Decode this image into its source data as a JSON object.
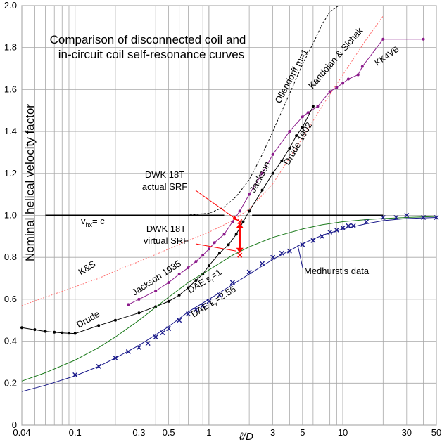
{
  "chart_data": {
    "type": "line",
    "title": "Comparison of disconnected coil and",
    "subtitle": "in-circuit coil self-resonance curves",
    "ylabel": "Nominal helical velocity factor",
    "xlabel": "ℓ/D",
    "x_scale": "log",
    "xlim": [
      0.04,
      50
    ],
    "ylim": [
      0,
      2.0
    ],
    "grid": true,
    "x_ticks": [
      {
        "v": 0.04,
        "label": "0.04"
      },
      {
        "v": 0.1,
        "label": "0.1"
      },
      {
        "v": 0.3,
        "label": "0.3"
      },
      {
        "v": 0.5,
        "label": "0.5"
      },
      {
        "v": 1,
        "label": "1"
      },
      {
        "v": 3,
        "label": "3"
      },
      {
        "v": 5,
        "label": "5"
      },
      {
        "v": 10,
        "label": "10"
      },
      {
        "v": 30,
        "label": "30"
      },
      {
        "v": 50,
        "label": "50"
      }
    ],
    "y_ticks": [
      {
        "v": 0,
        "label": "0"
      },
      {
        "v": 0.2,
        "label": "0.2"
      },
      {
        "v": 0.4,
        "label": "0.4"
      },
      {
        "v": 0.6,
        "label": "0.6"
      },
      {
        "v": 0.8,
        "label": "0.8"
      },
      {
        "v": 1.0,
        "label": "1.0"
      },
      {
        "v": 1.2,
        "label": "1.2"
      },
      {
        "v": 1.4,
        "label": "1.4"
      },
      {
        "v": 1.6,
        "label": "1.6"
      },
      {
        "v": 1.8,
        "label": "1.8"
      },
      {
        "v": 2.0,
        "label": "2.0"
      }
    ],
    "series": [
      {
        "name": "Ollendorff m=1",
        "color": "#000000",
        "dash": "3,2",
        "marker": "none",
        "x": [
          0.5,
          0.7,
          1,
          1.3,
          1.6,
          2,
          2.5,
          3,
          4,
          5,
          6,
          7,
          8,
          9.3
        ],
        "y": [
          1.0,
          1.002,
          1.01,
          1.04,
          1.09,
          1.17,
          1.29,
          1.4,
          1.58,
          1.72,
          1.82,
          1.91,
          1.97,
          2.0
        ]
      },
      {
        "name": "Kandoian & Sichak",
        "color": "#ff7070",
        "dash": "2,2",
        "marker": "none",
        "x": [
          0.04,
          0.06,
          0.1,
          0.15,
          0.2,
          0.3,
          0.5,
          0.7,
          1,
          1.5,
          2,
          3,
          5,
          7,
          10,
          15,
          20
        ],
        "y": [
          0.57,
          0.61,
          0.66,
          0.7,
          0.735,
          0.78,
          0.84,
          0.88,
          0.92,
          0.975,
          1.03,
          1.15,
          1.37,
          1.52,
          1.67,
          1.84,
          1.95
        ]
      },
      {
        "name": "K&S",
        "color": "#000000",
        "dash": "",
        "marker": "none",
        "x": [
          0.04,
          0.1
        ],
        "y": [
          0,
          0
        ]
      },
      {
        "name": "KK4VB",
        "color": "#8b1a8b",
        "dash": "",
        "marker": "dot",
        "x": [
          4,
          5,
          5.5,
          6.5,
          8,
          9,
          10,
          11,
          13,
          14,
          20,
          40
        ],
        "y": [
          1.4,
          1.47,
          1.49,
          1.52,
          1.59,
          1.61,
          1.63,
          1.65,
          1.67,
          1.71,
          1.84,
          1.84
        ]
      },
      {
        "name": "Jackson 1935",
        "color": "#8b1a8b",
        "dash": "",
        "marker": "dot",
        "x": [
          0.25,
          0.3,
          0.4,
          0.5,
          0.6,
          0.7,
          0.8,
          0.9,
          1.0,
          1.1,
          1.3,
          1.5,
          1.7,
          2.0,
          2.5,
          3,
          4
        ],
        "y": [
          0.575,
          0.6,
          0.64,
          0.68,
          0.72,
          0.75,
          0.78,
          0.81,
          0.84,
          0.87,
          0.91,
          0.97,
          1.02,
          1.1,
          1.2,
          1.29,
          1.4
        ]
      },
      {
        "name": "Drude 1902",
        "color": "#000000",
        "dash": "",
        "marker": "dot",
        "x": [
          0.04,
          0.05,
          0.06,
          0.07,
          0.08,
          0.09,
          0.1,
          0.15,
          0.2,
          0.3,
          0.4,
          0.5,
          0.6,
          0.7,
          0.8,
          0.9,
          1.0,
          1.2,
          1.4,
          1.6,
          1.8,
          2.0,
          2.5,
          3,
          3.5,
          4,
          4.5,
          5,
          6
        ],
        "y": [
          0.465,
          0.455,
          0.447,
          0.443,
          0.44,
          0.438,
          0.437,
          0.475,
          0.5,
          0.535,
          0.565,
          0.59,
          0.62,
          0.655,
          0.69,
          0.72,
          0.76,
          0.82,
          0.86,
          0.91,
          0.97,
          1.02,
          1.12,
          1.2,
          1.26,
          1.32,
          1.38,
          1.42,
          1.52
        ]
      },
      {
        "name": "Jackson",
        "color": "#000000",
        "dash": "",
        "marker": "none",
        "x": [
          0.04,
          0.1
        ],
        "y": [
          0,
          0
        ]
      },
      {
        "name": "DAE εr=1",
        "color": "#1a7a1a",
        "dash": "",
        "marker": "none",
        "x": [
          0.04,
          0.06,
          0.1,
          0.15,
          0.2,
          0.3,
          0.5,
          0.7,
          1,
          1.5,
          2,
          3,
          5,
          7,
          10,
          15,
          20,
          30,
          50
        ],
        "y": [
          0.21,
          0.25,
          0.31,
          0.37,
          0.42,
          0.5,
          0.61,
          0.68,
          0.74,
          0.81,
          0.85,
          0.895,
          0.935,
          0.955,
          0.97,
          0.98,
          0.985,
          0.99,
          0.995
        ]
      },
      {
        "name": "DAE εr=2.56",
        "color": "#1a1a8b",
        "dash": "",
        "marker": "none",
        "x": [
          0.04,
          0.06,
          0.1,
          0.15,
          0.2,
          0.3,
          0.5,
          0.7,
          1,
          1.5,
          2,
          3,
          5,
          7,
          10,
          15,
          20,
          30,
          50
        ],
        "y": [
          0.16,
          0.19,
          0.235,
          0.28,
          0.32,
          0.38,
          0.47,
          0.54,
          0.6,
          0.67,
          0.72,
          0.79,
          0.865,
          0.905,
          0.935,
          0.96,
          0.975,
          0.985,
          0.99
        ]
      },
      {
        "name": "Medhurst's data",
        "color": "#1a1a8b",
        "dash": "",
        "marker": "x",
        "line": false,
        "x": [
          0.1,
          0.15,
          0.2,
          0.25,
          0.3,
          0.35,
          0.4,
          0.45,
          0.5,
          0.6,
          0.7,
          0.8,
          0.9,
          1.0,
          1.2,
          1.5,
          2,
          2.5,
          3,
          3.5,
          4,
          5,
          6,
          7,
          8,
          9,
          10,
          11,
          12,
          15,
          20,
          25,
          30,
          40,
          50
        ],
        "y": [
          0.24,
          0.28,
          0.32,
          0.35,
          0.37,
          0.39,
          0.42,
          0.44,
          0.46,
          0.5,
          0.53,
          0.55,
          0.57,
          0.59,
          0.62,
          0.68,
          0.73,
          0.77,
          0.8,
          0.82,
          0.83,
          0.86,
          0.88,
          0.9,
          0.92,
          0.93,
          0.94,
          0.95,
          0.95,
          0.97,
          0.99,
          0.99,
          1.0,
          0.99,
          0.99
        ]
      }
    ],
    "reference_line": {
      "y": 1.0,
      "xfrom": 0.06,
      "xto": 20,
      "label": "v",
      "sub": "hx",
      "suffix": "= c"
    },
    "markers": [
      {
        "name": "actual SRF",
        "x": 1.7,
        "y": 0.97,
        "color": "#ff0000"
      },
      {
        "name": "virtual SRF",
        "x": 1.7,
        "y": 0.81,
        "color": "#ff0000"
      }
    ],
    "annotations": {
      "olle": "Ollendorff  m=1",
      "kand": "Kandoian & Sichak",
      "kk4vb": "KK4VB",
      "drude1902": "Drude 1902",
      "jackson": "Jackson",
      "jackson1935": "Jackson 1935",
      "drude": "Drude",
      "ks": "K&S",
      "dwk_actual_1": "DWK 18T",
      "dwk_actual_2": "actual SRF",
      "dwk_virtual_1": "DWK 18T",
      "dwk_virtual_2": "virtual SRF",
      "dae1": "DAE ε",
      "dae1_sub": "r",
      "dae1_suffix": "=1",
      "dae2": "DAE ε",
      "dae2_sub": "r",
      "dae2_suffix": "=2.56",
      "medhurst": "Medhurst's data"
    }
  }
}
